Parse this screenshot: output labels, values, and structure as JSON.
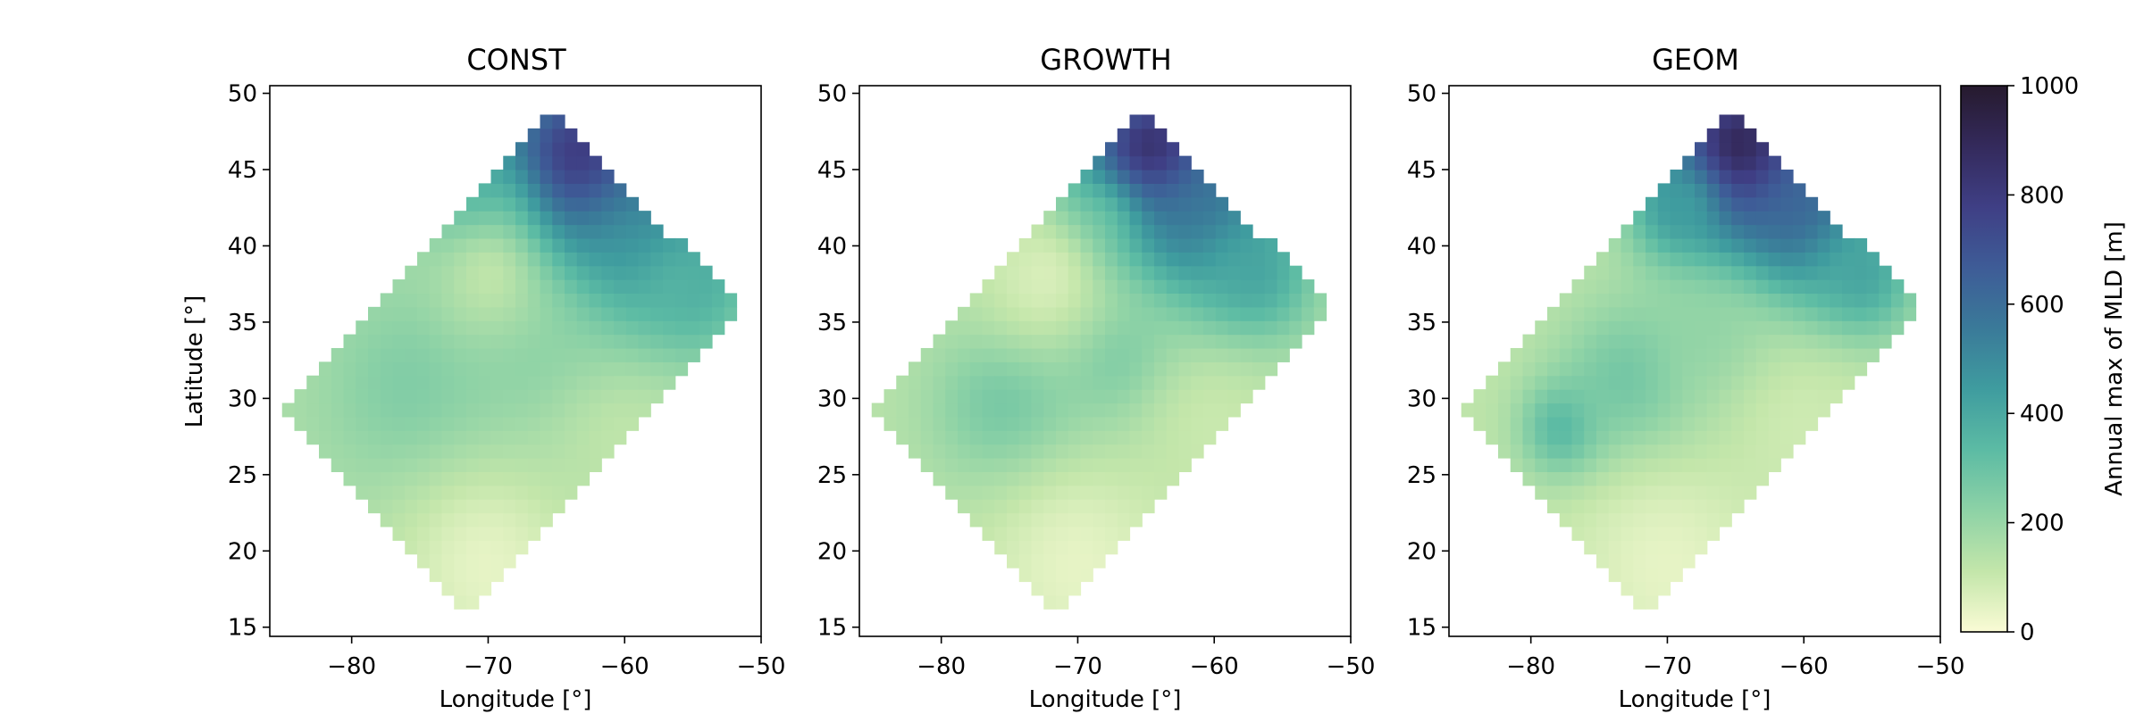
{
  "chart_data": [
    {
      "type": "heatmap",
      "title": "CONST",
      "xlabel": "Longitude [°]",
      "ylabel": "Latitude [°]",
      "xlim": [
        -86,
        -50
      ],
      "ylim": [
        14.4,
        50.5
      ],
      "xticks": [
        -80,
        -70,
        -60,
        -50
      ],
      "yticks": [
        15,
        20,
        25,
        30,
        35,
        40,
        45,
        50
      ],
      "grid": false,
      "domain_corners": [
        [
          -71.5,
          15.7
        ],
        [
          -85.2,
          29.0
        ],
        [
          -65.0,
          49.0
        ],
        [
          -51.5,
          35.8
        ]
      ],
      "field": {
        "background": 150,
        "zones": [
          {
            "lon": -63.0,
            "lat": 44.5,
            "value": 960,
            "radius": 4.8
          },
          {
            "lon": -59.0,
            "lat": 40.5,
            "value": 560,
            "radius": 4.5
          },
          {
            "lon": -55.5,
            "lat": 37.5,
            "value": 380,
            "radius": 3.2
          },
          {
            "lon": -70.0,
            "lat": 42.5,
            "value": 420,
            "radius": 2.8
          },
          {
            "lon": -75.0,
            "lat": 30.5,
            "value": 260,
            "radius": 5.0
          },
          {
            "lon": -66.5,
            "lat": 33.0,
            "value": 240,
            "radius": 5.0
          },
          {
            "lon": -70.0,
            "lat": 38.0,
            "value": 120,
            "radius": 3.0
          },
          {
            "lon": -70.0,
            "lat": 19.0,
            "value": 40,
            "radius": 5.0
          },
          {
            "lon": -60.0,
            "lat": 27.0,
            "value": 120,
            "radius": 4.0
          }
        ]
      }
    },
    {
      "type": "heatmap",
      "title": "GROWTH",
      "xlabel": "Longitude [°]",
      "ylabel": "",
      "xlim": [
        -86,
        -50
      ],
      "ylim": [
        14.4,
        50.5
      ],
      "xticks": [
        -80,
        -70,
        -60,
        -50
      ],
      "yticks": [
        15,
        20,
        25,
        30,
        35,
        40,
        45,
        50
      ],
      "grid": false,
      "domain_corners": [
        [
          -71.5,
          15.7
        ],
        [
          -85.2,
          29.0
        ],
        [
          -65.0,
          49.0
        ],
        [
          -51.5,
          35.8
        ]
      ],
      "field": {
        "background": 130,
        "zones": [
          {
            "lon": -64.5,
            "lat": 45.5,
            "value": 980,
            "radius": 3.8
          },
          {
            "lon": -60.5,
            "lat": 42.0,
            "value": 620,
            "radius": 3.8
          },
          {
            "lon": -57.5,
            "lat": 38.0,
            "value": 420,
            "radius": 3.4
          },
          {
            "lon": -68.5,
            "lat": 41.5,
            "value": 380,
            "radius": 2.6
          },
          {
            "lon": -75.0,
            "lat": 29.5,
            "value": 290,
            "radius": 4.0
          },
          {
            "lon": -67.0,
            "lat": 32.5,
            "value": 280,
            "radius": 3.5
          },
          {
            "lon": -72.5,
            "lat": 38.0,
            "value": 70,
            "radius": 3.5
          },
          {
            "lon": -70.0,
            "lat": 19.0,
            "value": 40,
            "radius": 5.0
          },
          {
            "lon": -60.0,
            "lat": 28.0,
            "value": 100,
            "radius": 4.0
          }
        ]
      }
    },
    {
      "type": "heatmap",
      "title": "GEOM",
      "xlabel": "Longitude [°]",
      "ylabel": "",
      "xlim": [
        -86,
        -50
      ],
      "ylim": [
        14.4,
        50.5
      ],
      "xticks": [
        -80,
        -70,
        -60,
        -50
      ],
      "yticks": [
        15,
        20,
        25,
        30,
        35,
        40,
        45,
        50
      ],
      "grid": false,
      "domain_corners": [
        [
          -71.5,
          15.7
        ],
        [
          -85.2,
          29.0
        ],
        [
          -65.0,
          49.0
        ],
        [
          -51.5,
          35.8
        ]
      ],
      "field": {
        "background": 120,
        "zones": [
          {
            "lon": -64.5,
            "lat": 45.8,
            "value": 1000,
            "radius": 4.2
          },
          {
            "lon": -60.0,
            "lat": 42.0,
            "value": 650,
            "radius": 3.8
          },
          {
            "lon": -56.0,
            "lat": 38.0,
            "value": 420,
            "radius": 3.0
          },
          {
            "lon": -69.0,
            "lat": 42.5,
            "value": 450,
            "radius": 2.4
          },
          {
            "lon": -77.5,
            "lat": 28.0,
            "value": 380,
            "radius": 2.2
          },
          {
            "lon": -72.5,
            "lat": 31.0,
            "value": 300,
            "radius": 3.8
          },
          {
            "lon": -66.5,
            "lat": 33.5,
            "value": 220,
            "radius": 3.5
          },
          {
            "lon": -70.0,
            "lat": 19.0,
            "value": 40,
            "radius": 5.0
          },
          {
            "lon": -60.0,
            "lat": 28.0,
            "value": 90,
            "radius": 4.0
          }
        ]
      }
    }
  ],
  "colorbar": {
    "label": "Annual max of MLD [m]",
    "min": 0,
    "max": 1000,
    "ticks": [
      0,
      200,
      400,
      600,
      800,
      1000
    ],
    "colormap_stops": [
      "#fafbd5",
      "#c3e6aa",
      "#8dd2a6",
      "#5cbba4",
      "#3f9c9f",
      "#3a7a99",
      "#3e5c97",
      "#3f3f85",
      "#342a5c",
      "#261a2e"
    ]
  }
}
